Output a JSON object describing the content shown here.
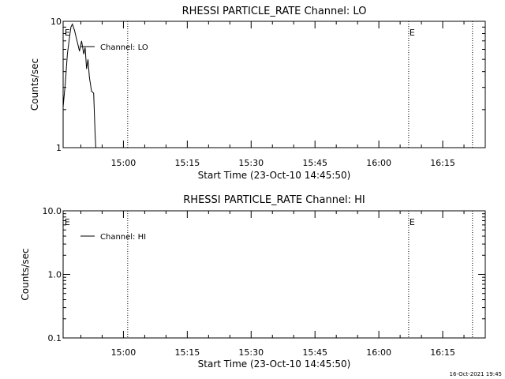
{
  "chart_data": [
    {
      "type": "line",
      "title": "RHESSI PARTICLE_RATE Channel: LO",
      "xlabel": "Start Time (23-Oct-10 14:45:50)",
      "ylabel": "Counts/sec",
      "yscale": "log",
      "ylim": [
        1,
        10
      ],
      "xlim": [
        "14:45:50",
        "16:25:00"
      ],
      "y_ticks": [
        "10",
        "1"
      ],
      "x_ticks": [
        "15:00",
        "15:15",
        "15:30",
        "15:45",
        "16:00",
        "16:15"
      ],
      "grid": false,
      "legend_position": "top-left",
      "series": [
        {
          "name": "Channel: LO",
          "x": [
            "14:45:50",
            "14:46:20",
            "14:46:50",
            "14:47:20",
            "14:47:40",
            "14:48:00",
            "14:48:30",
            "14:49:00",
            "14:49:20",
            "14:49:40",
            "14:50:10",
            "14:50:40",
            "14:51:00",
            "14:51:20",
            "14:51:40",
            "14:52:00",
            "14:52:30",
            "14:53:00",
            "14:53:20",
            "14:53:30"
          ],
          "y": [
            2.1,
            3.2,
            5.5,
            7.5,
            9.0,
            9.5,
            8.5,
            7.2,
            6.5,
            5.8,
            7.0,
            5.5,
            6.2,
            4.2,
            5.0,
            3.6,
            2.8,
            2.7,
            1.3,
            1.0
          ]
        }
      ],
      "markers": [
        {
          "label": "E",
          "time": "14:46:00",
          "line": false
        },
        {
          "label": "",
          "time": "15:01:00",
          "line": true
        },
        {
          "label": "E",
          "time": "16:07:00",
          "line": true
        },
        {
          "label": "",
          "time": "16:22:00",
          "line": true
        }
      ]
    },
    {
      "type": "line",
      "title": "RHESSI PARTICLE_RATE Channel: HI",
      "xlabel": "Start Time (23-Oct-10 14:45:50)",
      "ylabel": "Counts/sec",
      "yscale": "log",
      "ylim": [
        0.1,
        10
      ],
      "xlim": [
        "14:45:50",
        "16:25:00"
      ],
      "y_ticks": [
        "10.0",
        "1.0",
        "0.1"
      ],
      "x_ticks": [
        "15:00",
        "15:15",
        "15:30",
        "15:45",
        "16:00",
        "16:15"
      ],
      "grid": false,
      "legend_position": "top-left",
      "series": [
        {
          "name": "Channel: HI",
          "x": [],
          "y": []
        }
      ],
      "markers": [
        {
          "label": "E",
          "time": "14:46:00",
          "line": false
        },
        {
          "label": "",
          "time": "15:01:00",
          "line": true
        },
        {
          "label": "E",
          "time": "16:07:00",
          "line": true
        },
        {
          "label": "",
          "time": "16:22:00",
          "line": true
        }
      ]
    }
  ],
  "footer": {
    "timestamp": "16-Oct-2021 19:45"
  }
}
